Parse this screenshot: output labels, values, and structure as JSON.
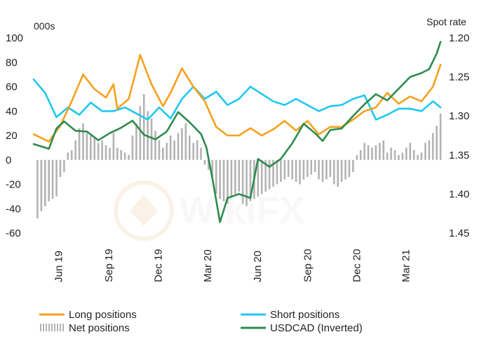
{
  "chart_data": {
    "type": "line",
    "left_axis": {
      "unit_label": "000s",
      "ylim": [
        -60,
        100
      ],
      "ticks": [
        100,
        80,
        60,
        40,
        20,
        0,
        -20,
        -40,
        -60
      ],
      "tick_labels": [
        "100",
        "80",
        "60",
        "40",
        "20",
        "0",
        "-20",
        "-40",
        "-60"
      ]
    },
    "right_axis": {
      "unit_label": "Spot rate",
      "ylim": [
        1.2,
        1.45
      ],
      "inverted": true,
      "ticks": [
        1.2,
        1.25,
        1.3,
        1.35,
        1.4,
        1.45
      ],
      "tick_labels": [
        "1.20",
        "1.25",
        "1.30",
        "1.35",
        "1.40",
        "1.45"
      ]
    },
    "x_axis": {
      "range": [
        "2019-04-16",
        "2021-05-04"
      ],
      "ticks": [
        {
          "date": "2019-06-01",
          "label": "Jun 19"
        },
        {
          "date": "2019-09-01",
          "label": "Sep 19"
        },
        {
          "date": "2019-12-01",
          "label": "Dec 19"
        },
        {
          "date": "2020-03-01",
          "label": "Mar 20"
        },
        {
          "date": "2020-06-01",
          "label": "Jun 20"
        },
        {
          "date": "2020-09-01",
          "label": "Sep 20"
        },
        {
          "date": "2020-12-01",
          "label": "Dec 20"
        },
        {
          "date": "2021-03-01",
          "label": "Mar 21"
        }
      ]
    },
    "grid": false,
    "legend_position": "bottom",
    "legend": [
      {
        "label": "Long positions",
        "series": "long",
        "style": "line"
      },
      {
        "label": "Short positions",
        "series": "short",
        "style": "line"
      },
      {
        "label": "Net positions",
        "series": "net",
        "style": "bars"
      },
      {
        "label": "USDCAD (Inverted)",
        "series": "usdcad",
        "style": "line"
      }
    ],
    "series": [
      {
        "id": "long",
        "name": "Long positions",
        "axis": "left",
        "color": "#f5a11c",
        "points": [
          [
            "2019-04-16",
            21
          ],
          [
            "2019-05-14",
            15
          ],
          [
            "2019-06-04",
            28
          ],
          [
            "2019-06-25",
            48
          ],
          [
            "2019-07-16",
            70
          ],
          [
            "2019-08-06",
            58
          ],
          [
            "2019-08-27",
            51
          ],
          [
            "2019-09-10",
            62
          ],
          [
            "2019-09-17",
            42
          ],
          [
            "2019-10-08",
            50
          ],
          [
            "2019-10-29",
            86
          ],
          [
            "2019-11-19",
            62
          ],
          [
            "2019-12-10",
            44
          ],
          [
            "2019-12-24",
            55
          ],
          [
            "2020-01-14",
            75
          ],
          [
            "2020-02-04",
            60
          ],
          [
            "2020-02-25",
            48
          ],
          [
            "2020-03-17",
            27
          ],
          [
            "2020-04-07",
            20
          ],
          [
            "2020-04-28",
            20
          ],
          [
            "2020-05-19",
            26
          ],
          [
            "2020-06-09",
            20
          ],
          [
            "2020-06-30",
            25
          ],
          [
            "2020-07-21",
            32
          ],
          [
            "2020-08-11",
            24
          ],
          [
            "2020-09-01",
            32
          ],
          [
            "2020-09-22",
            21
          ],
          [
            "2020-10-13",
            27
          ],
          [
            "2020-11-03",
            27
          ],
          [
            "2020-11-24",
            33
          ],
          [
            "2020-12-15",
            40
          ],
          [
            "2021-01-05",
            43
          ],
          [
            "2021-01-26",
            55
          ],
          [
            "2021-02-16",
            46
          ],
          [
            "2021-03-09",
            52
          ],
          [
            "2021-03-30",
            48
          ],
          [
            "2021-04-20",
            60
          ],
          [
            "2021-05-04",
            78
          ]
        ]
      },
      {
        "id": "short",
        "name": "Short positions",
        "axis": "left",
        "color": "#1fc8ef",
        "points": [
          [
            "2019-04-16",
            66
          ],
          [
            "2019-05-07",
            55
          ],
          [
            "2019-05-28",
            35
          ],
          [
            "2019-06-18",
            43
          ],
          [
            "2019-07-09",
            37
          ],
          [
            "2019-07-30",
            47
          ],
          [
            "2019-08-20",
            40
          ],
          [
            "2019-09-10",
            40
          ],
          [
            "2019-10-01",
            43
          ],
          [
            "2019-10-22",
            38
          ],
          [
            "2019-11-12",
            33
          ],
          [
            "2019-12-03",
            43
          ],
          [
            "2019-12-24",
            34
          ],
          [
            "2020-01-14",
            50
          ],
          [
            "2020-02-04",
            60
          ],
          [
            "2020-02-25",
            50
          ],
          [
            "2020-03-17",
            56
          ],
          [
            "2020-04-07",
            45
          ],
          [
            "2020-04-28",
            50
          ],
          [
            "2020-05-19",
            60
          ],
          [
            "2020-06-09",
            54
          ],
          [
            "2020-06-30",
            48
          ],
          [
            "2020-07-21",
            45
          ],
          [
            "2020-08-11",
            50
          ],
          [
            "2020-09-01",
            45
          ],
          [
            "2020-09-22",
            40
          ],
          [
            "2020-10-13",
            44
          ],
          [
            "2020-11-03",
            45
          ],
          [
            "2020-11-24",
            50
          ],
          [
            "2020-12-15",
            53
          ],
          [
            "2021-01-05",
            33
          ],
          [
            "2021-01-26",
            37
          ],
          [
            "2021-02-16",
            42
          ],
          [
            "2021-03-09",
            42
          ],
          [
            "2021-03-30",
            40
          ],
          [
            "2021-04-20",
            48
          ],
          [
            "2021-05-04",
            43
          ]
        ]
      },
      {
        "id": "usdcad",
        "name": "USDCAD (Inverted)",
        "axis": "right",
        "color": "#2e8b4e",
        "points": [
          [
            "2019-04-16",
            1.336
          ],
          [
            "2019-05-14",
            1.342
          ],
          [
            "2019-05-28",
            1.316
          ],
          [
            "2019-06-11",
            1.307
          ],
          [
            "2019-07-02",
            1.319
          ],
          [
            "2019-07-23",
            1.32
          ],
          [
            "2019-08-13",
            1.331
          ],
          [
            "2019-09-03",
            1.322
          ],
          [
            "2019-09-24",
            1.315
          ],
          [
            "2019-10-15",
            1.306
          ],
          [
            "2019-11-05",
            1.324
          ],
          [
            "2019-11-26",
            1.33
          ],
          [
            "2019-12-17",
            1.32
          ],
          [
            "2020-01-07",
            1.295
          ],
          [
            "2020-01-28",
            1.308
          ],
          [
            "2020-02-18",
            1.323
          ],
          [
            "2020-02-28",
            1.34
          ],
          [
            "2020-03-10",
            1.38
          ],
          [
            "2020-03-24",
            1.436
          ],
          [
            "2020-04-07",
            1.405
          ],
          [
            "2020-04-28",
            1.4
          ],
          [
            "2020-05-19",
            1.405
          ],
          [
            "2020-06-02",
            1.355
          ],
          [
            "2020-06-23",
            1.365
          ],
          [
            "2020-07-14",
            1.355
          ],
          [
            "2020-08-04",
            1.335
          ],
          [
            "2020-08-25",
            1.31
          ],
          [
            "2020-09-15",
            1.322
          ],
          [
            "2020-09-29",
            1.332
          ],
          [
            "2020-10-13",
            1.318
          ],
          [
            "2020-11-03",
            1.316
          ],
          [
            "2020-11-24",
            1.3
          ],
          [
            "2020-12-15",
            1.285
          ],
          [
            "2021-01-05",
            1.272
          ],
          [
            "2021-01-26",
            1.28
          ],
          [
            "2021-02-16",
            1.265
          ],
          [
            "2021-03-09",
            1.25
          ],
          [
            "2021-03-30",
            1.245
          ],
          [
            "2021-04-13",
            1.24
          ],
          [
            "2021-04-27",
            1.22
          ],
          [
            "2021-05-04",
            1.205
          ]
        ]
      },
      {
        "id": "net",
        "name": "Net positions",
        "axis": "left",
        "color": "#b3b3b3",
        "style": "bars",
        "points": [
          [
            "2019-04-23",
            -48
          ],
          [
            "2019-04-30",
            -42
          ],
          [
            "2019-05-07",
            -38
          ],
          [
            "2019-05-14",
            -34
          ],
          [
            "2019-05-21",
            -32
          ],
          [
            "2019-05-28",
            -30
          ],
          [
            "2019-06-04",
            -14
          ],
          [
            "2019-06-11",
            -10
          ],
          [
            "2019-06-18",
            6
          ],
          [
            "2019-06-25",
            8
          ],
          [
            "2019-07-02",
            16
          ],
          [
            "2019-07-09",
            26
          ],
          [
            "2019-07-16",
            30
          ],
          [
            "2019-07-23",
            22
          ],
          [
            "2019-07-30",
            20
          ],
          [
            "2019-08-06",
            18
          ],
          [
            "2019-08-13",
            14
          ],
          [
            "2019-08-20",
            16
          ],
          [
            "2019-08-27",
            12
          ],
          [
            "2019-09-03",
            10
          ],
          [
            "2019-09-10",
            22
          ],
          [
            "2019-09-17",
            10
          ],
          [
            "2019-09-24",
            8
          ],
          [
            "2019-10-01",
            6
          ],
          [
            "2019-10-08",
            4
          ],
          [
            "2019-10-15",
            20
          ],
          [
            "2019-10-22",
            30
          ],
          [
            "2019-10-29",
            44
          ],
          [
            "2019-11-05",
            54
          ],
          [
            "2019-11-12",
            40
          ],
          [
            "2019-11-19",
            34
          ],
          [
            "2019-11-26",
            24
          ],
          [
            "2019-12-03",
            16
          ],
          [
            "2019-12-10",
            10
          ],
          [
            "2019-12-17",
            14
          ],
          [
            "2019-12-24",
            20
          ],
          [
            "2019-12-31",
            16
          ],
          [
            "2020-01-07",
            22
          ],
          [
            "2020-01-14",
            26
          ],
          [
            "2020-01-21",
            30
          ],
          [
            "2020-01-28",
            20
          ],
          [
            "2020-02-04",
            14
          ],
          [
            "2020-02-11",
            16
          ],
          [
            "2020-02-18",
            10
          ],
          [
            "2020-02-25",
            -4
          ],
          [
            "2020-03-03",
            -8
          ],
          [
            "2020-03-10",
            -14
          ],
          [
            "2020-03-17",
            -28
          ],
          [
            "2020-03-24",
            -32
          ],
          [
            "2020-03-31",
            -34
          ],
          [
            "2020-04-07",
            -36
          ],
          [
            "2020-04-14",
            -30
          ],
          [
            "2020-04-21",
            -28
          ],
          [
            "2020-04-28",
            -26
          ],
          [
            "2020-05-05",
            -36
          ],
          [
            "2020-05-12",
            -38
          ],
          [
            "2020-05-19",
            -34
          ],
          [
            "2020-05-26",
            -32
          ],
          [
            "2020-06-02",
            -30
          ],
          [
            "2020-06-09",
            -28
          ],
          [
            "2020-06-16",
            -26
          ],
          [
            "2020-06-23",
            -24
          ],
          [
            "2020-06-30",
            -22
          ],
          [
            "2020-07-07",
            -20
          ],
          [
            "2020-07-14",
            -18
          ],
          [
            "2020-07-21",
            -16
          ],
          [
            "2020-07-28",
            -14
          ],
          [
            "2020-08-04",
            -16
          ],
          [
            "2020-08-11",
            -18
          ],
          [
            "2020-08-18",
            -20
          ],
          [
            "2020-08-25",
            -16
          ],
          [
            "2020-09-01",
            -14
          ],
          [
            "2020-09-08",
            -12
          ],
          [
            "2020-09-15",
            -10
          ],
          [
            "2020-09-22",
            -16
          ],
          [
            "2020-09-29",
            -18
          ],
          [
            "2020-10-06",
            -16
          ],
          [
            "2020-10-13",
            -14
          ],
          [
            "2020-10-20",
            -20
          ],
          [
            "2020-10-27",
            -22
          ],
          [
            "2020-11-03",
            -18
          ],
          [
            "2020-11-10",
            -16
          ],
          [
            "2020-11-17",
            -14
          ],
          [
            "2020-11-24",
            -10
          ],
          [
            "2020-12-01",
            4
          ],
          [
            "2020-12-08",
            8
          ],
          [
            "2020-12-15",
            14
          ],
          [
            "2020-12-22",
            12
          ],
          [
            "2020-12-29",
            10
          ],
          [
            "2021-01-05",
            12
          ],
          [
            "2021-01-12",
            14
          ],
          [
            "2021-01-19",
            16
          ],
          [
            "2021-01-26",
            6
          ],
          [
            "2021-02-02",
            10
          ],
          [
            "2021-02-09",
            8
          ],
          [
            "2021-02-16",
            4
          ],
          [
            "2021-02-23",
            6
          ],
          [
            "2021-03-02",
            10
          ],
          [
            "2021-03-09",
            14
          ],
          [
            "2021-03-16",
            8
          ],
          [
            "2021-03-23",
            4
          ],
          [
            "2021-03-30",
            6
          ],
          [
            "2021-04-06",
            14
          ],
          [
            "2021-04-13",
            16
          ],
          [
            "2021-04-20",
            22
          ],
          [
            "2021-04-27",
            28
          ],
          [
            "2021-05-04",
            38
          ]
        ]
      }
    ]
  }
}
